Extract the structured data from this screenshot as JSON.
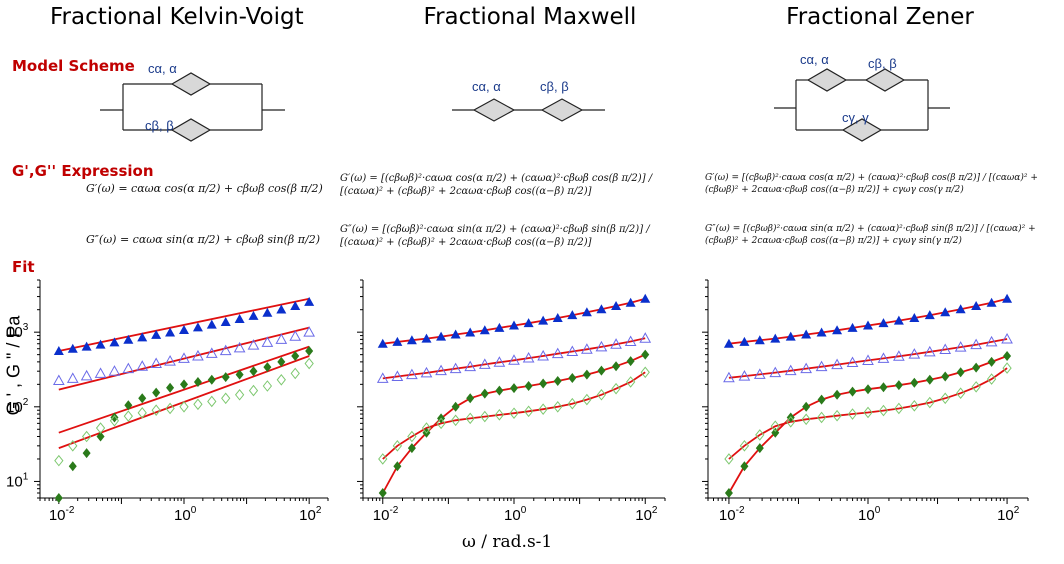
{
  "titles": [
    "Fractional Kelvin-Voigt",
    "Fractional Maxwell",
    "Fractional Zener"
  ],
  "row_labels": {
    "scheme": "Model Scheme",
    "expression": "G',G'' Expression",
    "fit": "Fit"
  },
  "schemes": {
    "kv": {
      "top": "cα, α",
      "bottom": "cβ, β"
    },
    "maxwell": {
      "left": "cα, α",
      "right": "cβ, β"
    },
    "zener": {
      "top_left": "cα, α",
      "top_right": "cβ, β",
      "bottom": "cγ, γ"
    }
  },
  "formulas": {
    "kv_gp": "G′(ω) = cαωα cos(α π/2) + cβωβ cos(β π/2)",
    "kv_gpp": "G″(ω) = cαωα sin(α π/2) + cβωβ sin(β π/2)",
    "mx_gp": "G′(ω) = [(cβωβ)²·cαωα cos(α π/2) + (cαωα)²·cβωβ cos(β π/2)] / [(cαωα)² + (cβωβ)² + 2cαωα·cβωβ cos((α−β) π/2)]",
    "mx_gpp": "G″(ω) = [(cβωβ)²·cαωα sin(α π/2) + (cαωα)²·cβωβ sin(β π/2)] / [(cαωα)² + (cβωβ)² + 2cαωα·cβωβ cos((α−β) π/2)]",
    "zn_gp": "G′(ω) = [(cβωβ)²·cαωα cos(α π/2) + (cαωα)²·cβωβ cos(β π/2)] / [(cαωα)² + (cβωβ)² + 2cαωα·cβωβ cos((α−β) π/2)] + cγωγ cos(γ π/2)",
    "zn_gpp": "G″(ω) = [(cβωβ)²·cαωα sin(α π/2) + (cαωα)²·cβωβ sin(β π/2)] / [(cαωα)² + (cβωβ)² + 2cαωα·cβωβ cos((α−β) π/2)] + cγωγ sin(γ π/2)"
  },
  "axis": {
    "xlabel": "ω / rad.s-1",
    "ylabel": "G ' , G \" / Pa",
    "xticks": [
      "10-2",
      "100",
      "102"
    ],
    "yticks": [
      "101",
      "102",
      "103"
    ]
  },
  "colors": {
    "storage": "#0a2fcc",
    "loss_open": "#6a6ae8",
    "lossG2": "#2a7a1a",
    "lossG2_open": "#7ec870",
    "fit": "#e01010",
    "label_red": "#c00000"
  },
  "chart_data": [
    {
      "type": "scatter",
      "title": "Fractional Kelvin-Voigt",
      "xlabel": "ω / rad.s-1",
      "ylabel": "G ' , G \" / Pa",
      "xscale": "log",
      "yscale": "log",
      "xlim": [
        0.005,
        200
      ],
      "ylim": [
        6,
        5000
      ],
      "x": [
        0.01,
        0.0167,
        0.0278,
        0.0464,
        0.0774,
        0.129,
        0.215,
        0.359,
        0.599,
        1.0,
        1.67,
        2.78,
        4.64,
        7.74,
        12.9,
        21.5,
        35.9,
        59.9,
        100
      ],
      "series": [
        {
          "marker": "filled-triangle",
          "values": [
            560,
            600,
            640,
            680,
            730,
            790,
            850,
            920,
            990,
            1070,
            1160,
            1260,
            1370,
            1500,
            1650,
            1820,
            2010,
            2240,
            2550
          ]
        },
        {
          "marker": "open-triangle",
          "values": [
            225,
            240,
            260,
            280,
            300,
            325,
            350,
            380,
            410,
            445,
            480,
            520,
            565,
            615,
            670,
            730,
            800,
            880,
            1000
          ]
        },
        {
          "marker": "filled-diamond",
          "values": [
            6,
            16,
            24,
            40,
            72,
            105,
            130,
            155,
            180,
            200,
            215,
            230,
            250,
            270,
            300,
            340,
            400,
            480,
            560
          ]
        },
        {
          "marker": "open-diamond",
          "values": [
            19,
            30,
            40,
            52,
            65,
            75,
            83,
            90,
            95,
            100,
            108,
            118,
            130,
            145,
            165,
            190,
            230,
            280,
            380
          ]
        },
        {
          "marker": "fit-line",
          "values": [
            560,
            2800
          ]
        },
        {
          "marker": "fit-line",
          "values": [
            170,
            1150
          ]
        },
        {
          "marker": "fit-line",
          "values": [
            45,
            640
          ]
        },
        {
          "marker": "fit-line",
          "values": [
            28,
            480
          ]
        }
      ]
    },
    {
      "type": "scatter",
      "title": "Fractional Maxwell",
      "xscale": "log",
      "yscale": "log",
      "xlim": [
        0.005,
        200
      ],
      "ylim": [
        6,
        5000
      ],
      "x": [
        0.01,
        0.0167,
        0.0278,
        0.0464,
        0.0774,
        0.129,
        0.215,
        0.359,
        0.599,
        1.0,
        1.67,
        2.78,
        4.64,
        7.74,
        12.9,
        21.5,
        35.9,
        59.9,
        100
      ],
      "series": [
        {
          "marker": "filled-triangle",
          "values": [
            700,
            740,
            780,
            820,
            870,
            930,
            990,
            1060,
            1140,
            1230,
            1320,
            1430,
            1550,
            1690,
            1850,
            2030,
            2240,
            2480,
            2800
          ]
        },
        {
          "marker": "open-triangle",
          "values": [
            240,
            255,
            270,
            285,
            305,
            325,
            345,
            370,
            395,
            420,
            450,
            480,
            515,
            550,
            590,
            635,
            690,
            750,
            830
          ]
        },
        {
          "marker": "filled-diamond",
          "values": [
            7,
            16,
            28,
            45,
            70,
            100,
            130,
            150,
            165,
            178,
            190,
            205,
            222,
            243,
            270,
            305,
            350,
            410,
            500
          ]
        },
        {
          "marker": "open-diamond",
          "values": [
            20,
            30,
            40,
            52,
            60,
            66,
            70,
            74,
            78,
            82,
            87,
            93,
            100,
            110,
            125,
            145,
            175,
            215,
            290
          ]
        }
      ]
    },
    {
      "type": "scatter",
      "title": "Fractional Zener",
      "xscale": "log",
      "yscale": "log",
      "xlim": [
        0.005,
        200
      ],
      "ylim": [
        6,
        5000
      ],
      "x": [
        0.01,
        0.0167,
        0.0278,
        0.0464,
        0.0774,
        0.129,
        0.215,
        0.359,
        0.599,
        1.0,
        1.67,
        2.78,
        4.64,
        7.74,
        12.9,
        21.5,
        35.9,
        59.9,
        100
      ],
      "series": [
        {
          "marker": "filled-triangle",
          "values": [
            700,
            740,
            780,
            820,
            870,
            930,
            990,
            1060,
            1140,
            1230,
            1320,
            1430,
            1550,
            1690,
            1850,
            2030,
            2240,
            2480,
            2800
          ]
        },
        {
          "marker": "open-triangle",
          "values": [
            245,
            258,
            272,
            287,
            305,
            325,
            345,
            368,
            392,
            418,
            445,
            475,
            508,
            545,
            585,
            630,
            680,
            740,
            810
          ]
        },
        {
          "marker": "filled-diamond",
          "values": [
            7,
            16,
            28,
            45,
            72,
            100,
            125,
            145,
            160,
            172,
            183,
            195,
            210,
            230,
            255,
            290,
            335,
            400,
            480
          ]
        },
        {
          "marker": "open-diamond",
          "values": [
            20,
            30,
            42,
            55,
            63,
            68,
            72,
            76,
            80,
            84,
            89,
            95,
            103,
            114,
            130,
            152,
            185,
            235,
            330
          ]
        }
      ]
    }
  ]
}
